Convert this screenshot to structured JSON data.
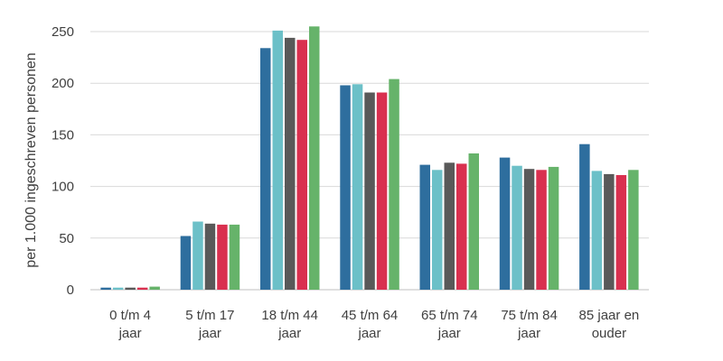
{
  "chart_data": {
    "type": "bar",
    "ylabel": "per 1.000 ingeschreven personen",
    "ylim": [
      0,
      250
    ],
    "yticks": [
      0,
      50,
      100,
      150,
      200,
      250
    ],
    "grid": true,
    "categories": [
      [
        "0 t/m 4",
        "jaar"
      ],
      [
        "5 t/m 17",
        "jaar"
      ],
      [
        "18 t/m 44",
        "jaar"
      ],
      [
        "45 t/m 64",
        "jaar"
      ],
      [
        "65 t/m 74",
        "jaar"
      ],
      [
        "75 t/m 84",
        "jaar"
      ],
      [
        "85 jaar en",
        "ouder"
      ]
    ],
    "series": [
      {
        "color": "#2e6e9e",
        "values": [
          2,
          52,
          234,
          198,
          121,
          128,
          141
        ]
      },
      {
        "color": "#6cc0c8",
        "values": [
          2,
          66,
          251,
          199,
          116,
          120,
          115
        ]
      },
      {
        "color": "#595959",
        "values": [
          2,
          64,
          244,
          191,
          123,
          117,
          112
        ]
      },
      {
        "color": "#d9304f",
        "values": [
          2,
          63,
          242,
          191,
          122,
          116,
          111
        ]
      },
      {
        "color": "#66b36a",
        "values": [
          3,
          63,
          255,
          204,
          132,
          119,
          116
        ]
      }
    ]
  }
}
